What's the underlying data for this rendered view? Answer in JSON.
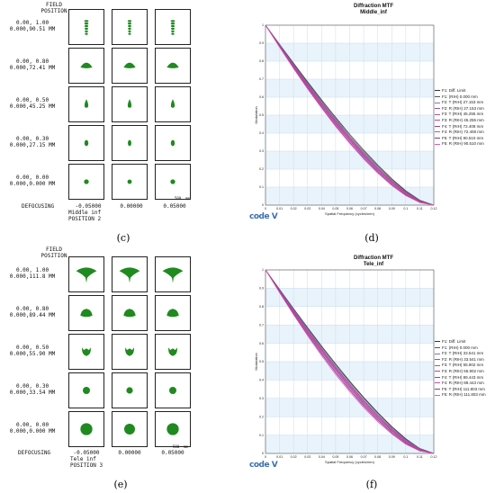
{
  "panels": {
    "c": {
      "caption": "(c)",
      "header": "FIELD\nPOSITION",
      "rows": [
        {
          "label": "0.00, 1.00\n0.000,90.51 MM",
          "spot": "vertical-stack"
        },
        {
          "label": "0.00, 0.80\n0.000,72.41 MM",
          "spot": "dome"
        },
        {
          "label": "0.00, 0.50\n0.000,45.25 MM",
          "spot": "drop"
        },
        {
          "label": "0.00, 0.30\n0.000,27.15 MM",
          "spot": "oval"
        },
        {
          "label": "0.00, 0.00\n0.000,0.000 MM",
          "spot": "dot"
        }
      ],
      "defocus_label": "DEFOCUSING",
      "defocus_values": [
        "-0.05000",
        "0.00000",
        "0.05000"
      ],
      "config_line1": "Middle inf",
      "config_line2": "POSITION 2",
      "scale_text": "500  mm"
    },
    "e": {
      "caption": "(e)",
      "header": "FIELD\nPOSITION",
      "rows": [
        {
          "label": "0.00, 1.00\n0.000,111.8 MM",
          "spot": "fan"
        },
        {
          "label": "0.00, 0.80\n0.000,89.44 MM",
          "spot": "blob"
        },
        {
          "label": "0.00, 0.50\n0.000,55.90 MM",
          "spot": "cup"
        },
        {
          "label": "0.00, 0.30\n0.000,33.54 MM",
          "spot": "round"
        },
        {
          "label": "0.00, 0.00\n0.000,0.000 MM",
          "spot": "big-dot"
        }
      ],
      "defocus_label": "DEFOCUSING",
      "defocus_values": [
        "-0.05000",
        "0.00000",
        "0.05000"
      ],
      "config_line1": "Tele inf",
      "config_line2": "POSITION 3",
      "scale_text": "500  mm"
    },
    "d": {
      "caption": "(d)",
      "title": "Diffraction MTF",
      "subtitle": "Middle_inf",
      "xlabel": "Spatial Frequency (cycles/mm)",
      "ylabel": "Modulation",
      "logo": "code V",
      "legend": [
        "F1: Diff. Limit",
        "F1: (RIH) 0.000 mm",
        "F2: T (RIH) 27.153 mm",
        "F2: R (RIH) 27.153 mm",
        "F3: T (RIH) 45.255 mm",
        "F3: R (RIH) 45.255 mm",
        "F4: T (RIH) 72.408 mm",
        "F4: R (RIH) 72.408 mm",
        "F5: T (RIH) 90.510 mm",
        "F5: R (RIH) 90.510 mm"
      ]
    },
    "f": {
      "caption": "(f)",
      "title": "Diffraction MTF",
      "subtitle": "Tele_inf",
      "xlabel": "Spatial Frequency (cycles/mm)",
      "ylabel": "Modulation",
      "logo": "code V",
      "legend": [
        "F1: Diff. Limit",
        "F1: (RIH) 0.000 mm",
        "F2: T (RIH) 33.541 mm",
        "F2: R (RIH) 33.541 mm",
        "F3: T (RIH) 55.902 mm",
        "F3: R (RIH) 55.902 mm",
        "F4: T (RIH) 89.443 mm",
        "F4: R (RIH) 89.443 mm",
        "F5: T (RIH) 111.803 mm",
        "F5: R (RIH) 111.803 mm"
      ]
    }
  },
  "chart_data": [
    {
      "type": "line",
      "title": "Diffraction MTF",
      "subtitle": "Middle_inf",
      "xlabel": "Spatial Frequency (cycles/mm)",
      "ylabel": "Modulation",
      "xlim": [
        0,
        0.12
      ],
      "ylim": [
        0,
        1
      ],
      "x_ticks": [
        "0",
        "0.01",
        "0.02",
        "0.03",
        "0.04",
        "0.05",
        "0.06",
        "0.07",
        "0.08",
        "0.09",
        "0.1",
        "0.11",
        "0.12"
      ],
      "y_ticks": [
        "0",
        "0.1",
        "0.2",
        "0.3",
        "0.4",
        "0.5",
        "0.6",
        "0.7",
        "0.8",
        "0.9",
        "1"
      ],
      "grid": true,
      "legend_position": "right",
      "x": [
        0,
        0.01,
        0.02,
        0.03,
        0.04,
        0.05,
        0.06,
        0.07,
        0.08,
        0.09,
        0.1,
        0.11,
        0.12
      ],
      "series": [
        {
          "name": "F1: Diff. Limit",
          "color": "#333333",
          "values": [
            1,
            0.894,
            0.789,
            0.686,
            0.585,
            0.488,
            0.394,
            0.306,
            0.223,
            0.147,
            0.08,
            0.027,
            0
          ]
        },
        {
          "name": "F1: (RIH) 0.000 mm",
          "color": "#555555",
          "values": [
            1,
            0.892,
            0.785,
            0.68,
            0.578,
            0.48,
            0.386,
            0.298,
            0.216,
            0.141,
            0.076,
            0.025,
            0
          ]
        },
        {
          "name": "F2: T (RIH) 27.153 mm",
          "color": "#8a6fb8",
          "values": [
            1,
            0.89,
            0.781,
            0.675,
            0.572,
            0.473,
            0.379,
            0.291,
            0.209,
            0.136,
            0.072,
            0.023,
            0
          ]
        },
        {
          "name": "F2: R (RIH) 27.153 mm",
          "color": "#a24bb0",
          "values": [
            1,
            0.889,
            0.779,
            0.672,
            0.569,
            0.47,
            0.376,
            0.288,
            0.207,
            0.134,
            0.071,
            0.022,
            0
          ]
        },
        {
          "name": "F3: T (RIH) 45.255 mm",
          "color": "#b0509c",
          "values": [
            1,
            0.887,
            0.776,
            0.668,
            0.564,
            0.465,
            0.371,
            0.283,
            0.202,
            0.13,
            0.068,
            0.021,
            0
          ]
        },
        {
          "name": "F3: R (RIH) 45.255 mm",
          "color": "#c23f94",
          "values": [
            1,
            0.886,
            0.774,
            0.665,
            0.561,
            0.461,
            0.367,
            0.279,
            0.199,
            0.127,
            0.066,
            0.02,
            0
          ]
        },
        {
          "name": "F4: T (RIH) 72.408 mm",
          "color": "#9a3f8f",
          "values": [
            1,
            0.884,
            0.77,
            0.66,
            0.555,
            0.455,
            0.361,
            0.273,
            0.193,
            0.122,
            0.062,
            0.018,
            0
          ]
        },
        {
          "name": "F4: R (RIH) 72.408 mm",
          "color": "#d24aa8",
          "values": [
            1,
            0.882,
            0.767,
            0.656,
            0.55,
            0.45,
            0.356,
            0.268,
            0.188,
            0.118,
            0.059,
            0.017,
            0
          ]
        },
        {
          "name": "F5: T (RIH) 90.510 mm",
          "color": "#7c3c9a",
          "values": [
            1,
            0.88,
            0.763,
            0.651,
            0.544,
            0.443,
            0.349,
            0.262,
            0.183,
            0.113,
            0.056,
            0.015,
            0
          ]
        },
        {
          "name": "F5: R (RIH) 90.510 mm",
          "color": "#e05ab8",
          "values": [
            1,
            0.878,
            0.759,
            0.646,
            0.539,
            0.437,
            0.343,
            0.256,
            0.178,
            0.109,
            0.053,
            0.014,
            0
          ]
        }
      ]
    },
    {
      "type": "line",
      "title": "Diffraction MTF",
      "subtitle": "Tele_inf",
      "xlabel": "Spatial Frequency (cycles/mm)",
      "ylabel": "Modulation",
      "xlim": [
        0,
        0.12
      ],
      "ylim": [
        0,
        1
      ],
      "x_ticks": [
        "0",
        "0.01",
        "0.02",
        "0.03",
        "0.04",
        "0.05",
        "0.06",
        "0.07",
        "0.08",
        "0.09",
        "0.1",
        "0.11",
        "0.12"
      ],
      "y_ticks": [
        "0",
        "0.1",
        "0.2",
        "0.3",
        "0.4",
        "0.5",
        "0.6",
        "0.7",
        "0.8",
        "0.9",
        "1"
      ],
      "grid": true,
      "legend_position": "right",
      "x": [
        0,
        0.01,
        0.02,
        0.03,
        0.04,
        0.05,
        0.06,
        0.07,
        0.08,
        0.09,
        0.1,
        0.11,
        0.12
      ],
      "series": [
        {
          "name": "F1: Diff. Limit",
          "color": "#333333",
          "values": [
            1,
            0.894,
            0.789,
            0.686,
            0.585,
            0.488,
            0.394,
            0.306,
            0.223,
            0.147,
            0.08,
            0.027,
            0
          ]
        },
        {
          "name": "F1: (RIH) 0.000 mm",
          "color": "#555555",
          "values": [
            1,
            0.893,
            0.786,
            0.682,
            0.58,
            0.482,
            0.388,
            0.3,
            0.218,
            0.143,
            0.077,
            0.026,
            0
          ]
        },
        {
          "name": "F2: T (RIH) 33.541 mm",
          "color": "#8a6fb8",
          "values": [
            1,
            0.89,
            0.782,
            0.676,
            0.573,
            0.474,
            0.38,
            0.292,
            0.21,
            0.137,
            0.073,
            0.024,
            0
          ]
        },
        {
          "name": "F2: R (RIH) 33.541 mm",
          "color": "#a24bb0",
          "values": [
            1,
            0.889,
            0.779,
            0.673,
            0.569,
            0.47,
            0.376,
            0.288,
            0.207,
            0.134,
            0.071,
            0.022,
            0
          ]
        },
        {
          "name": "F3: T (RIH) 55.902 mm",
          "color": "#b0509c",
          "values": [
            1,
            0.887,
            0.776,
            0.668,
            0.564,
            0.465,
            0.371,
            0.283,
            0.202,
            0.13,
            0.068,
            0.021,
            0
          ]
        },
        {
          "name": "F3: R (RIH) 55.902 mm",
          "color": "#c23f94",
          "values": [
            1,
            0.886,
            0.773,
            0.664,
            0.559,
            0.459,
            0.365,
            0.277,
            0.197,
            0.126,
            0.065,
            0.02,
            0
          ]
        },
        {
          "name": "F4: T (RIH) 89.443 mm",
          "color": "#9a3f8f",
          "values": [
            1,
            0.884,
            0.77,
            0.659,
            0.553,
            0.453,
            0.359,
            0.271,
            0.191,
            0.121,
            0.061,
            0.018,
            0
          ]
        },
        {
          "name": "F4: R (RIH) 89.443 mm",
          "color": "#d24aa8",
          "values": [
            1,
            0.881,
            0.765,
            0.653,
            0.546,
            0.445,
            0.351,
            0.264,
            0.185,
            0.115,
            0.057,
            0.016,
            0
          ]
        },
        {
          "name": "F5: T (RIH) 111.803 mm",
          "color": "#7c3c9a",
          "values": [
            1,
            0.879,
            0.761,
            0.648,
            0.54,
            0.439,
            0.345,
            0.258,
            0.18,
            0.111,
            0.054,
            0.014,
            0
          ]
        },
        {
          "name": "F5: R (RIH) 111.803 mm",
          "color": "#e05ab8",
          "values": [
            1,
            0.876,
            0.756,
            0.641,
            0.532,
            0.43,
            0.336,
            0.25,
            0.173,
            0.106,
            0.05,
            0.013,
            0
          ]
        }
      ]
    }
  ]
}
